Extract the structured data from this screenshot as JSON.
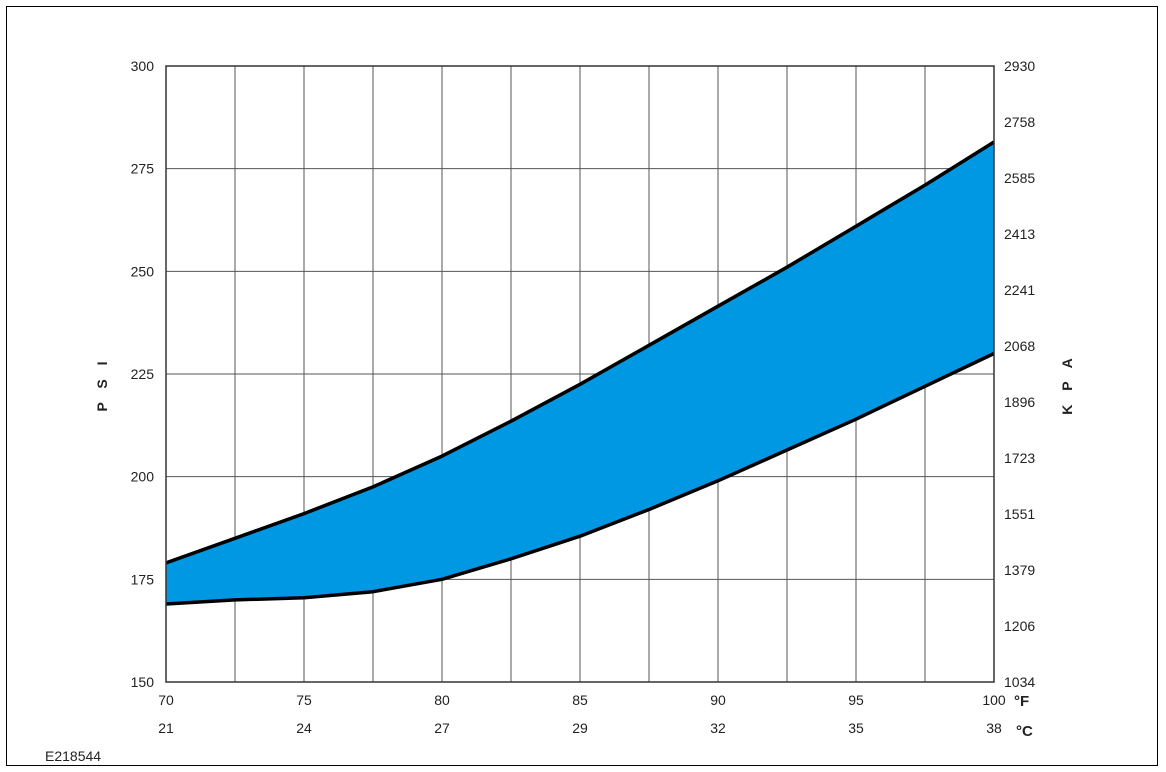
{
  "figure_id": "E218544",
  "chart_data": {
    "type": "area",
    "x_unit": "°F",
    "x_unit_secondary": "°C",
    "xlim": [
      70,
      100
    ],
    "x_ticks": [
      70,
      75,
      80,
      85,
      90,
      95,
      100
    ],
    "x_ticks_secondary": [
      "21",
      "24",
      "27",
      "29",
      "32",
      "35",
      "38"
    ],
    "x_grid_step": 2.5,
    "ylabel": "P S I",
    "ylim": [
      150,
      300
    ],
    "y_ticks": [
      150,
      175,
      200,
      225,
      250,
      275,
      300
    ],
    "ylabel_right": "K P A",
    "y_ticks_right": [
      "1034",
      "1206",
      "1379",
      "1551",
      "1723",
      "1896",
      "2068",
      "2241",
      "2413",
      "2585",
      "2758",
      "2930"
    ],
    "grid": true,
    "fill_color": "#0098e3",
    "line_color": "#000000",
    "series": [
      {
        "x": [
          70,
          72.5,
          75,
          77.5,
          80,
          82.5,
          85,
          87.5,
          90,
          92.5,
          95,
          97.5,
          100
        ],
        "values": [
          179,
          185,
          191,
          197.5,
          205,
          213.5,
          222.5,
          232,
          241.5,
          251,
          261,
          271,
          281.5
        ]
      },
      {
        "x": [
          70,
          72.5,
          75,
          77.5,
          80,
          82.5,
          85,
          87.5,
          90,
          92.5,
          95,
          97.5,
          100
        ],
        "values": [
          169,
          170,
          170.5,
          172,
          175,
          180,
          185.5,
          192,
          199,
          206.5,
          214,
          222,
          230
        ]
      }
    ]
  }
}
